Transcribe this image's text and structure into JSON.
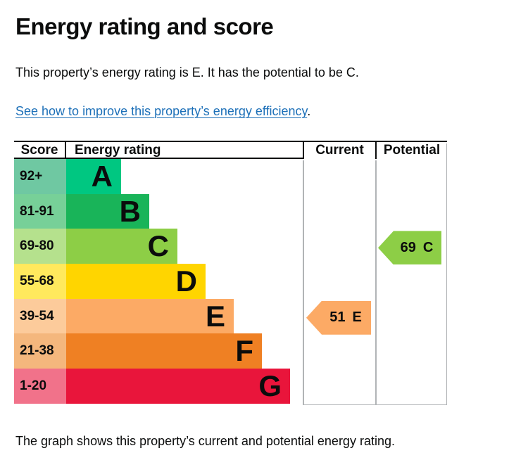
{
  "page": {
    "title": "Energy rating and score",
    "intro": "This property’s energy rating is E. It has the potential to be C.",
    "improve_link": "See how to improve this property’s energy efficiency",
    "improve_link_suffix": ".",
    "caption": "The graph shows this property’s current and potential energy rating."
  },
  "colors": {
    "text": "#0b0c0c",
    "link": "#1d70b8",
    "grid_line": "#b1b4b6",
    "header_line": "#0b0c0c"
  },
  "chart_data": {
    "type": "table",
    "title": "Energy rating and score",
    "columns": {
      "score": "Score",
      "rating": "Energy rating",
      "current": "Current",
      "potential": "Potential"
    },
    "bands": [
      {
        "score": "92+",
        "letter": "A",
        "color": "#00c781",
        "tint": "#6fc8a2"
      },
      {
        "score": "81-91",
        "letter": "B",
        "color": "#19b459",
        "tint": "#77d098"
      },
      {
        "score": "69-80",
        "letter": "C",
        "color": "#8dce46",
        "tint": "#b5e18d"
      },
      {
        "score": "55-68",
        "letter": "D",
        "color": "#ffd500",
        "tint": "#ffe95d"
      },
      {
        "score": "39-54",
        "letter": "E",
        "color": "#fcaa65",
        "tint": "#fccb9b"
      },
      {
        "score": "21-38",
        "letter": "F",
        "color": "#ef8023",
        "tint": "#f4b77d"
      },
      {
        "score": "1-20",
        "letter": "G",
        "color": "#e9153b",
        "tint": "#f1728a"
      }
    ],
    "current": {
      "value": "51",
      "letter": "E",
      "band_index": 4,
      "color": "#fcaa65"
    },
    "potential": {
      "value": "69",
      "letter": "C",
      "band_index": 2,
      "color": "#8dce46"
    }
  }
}
